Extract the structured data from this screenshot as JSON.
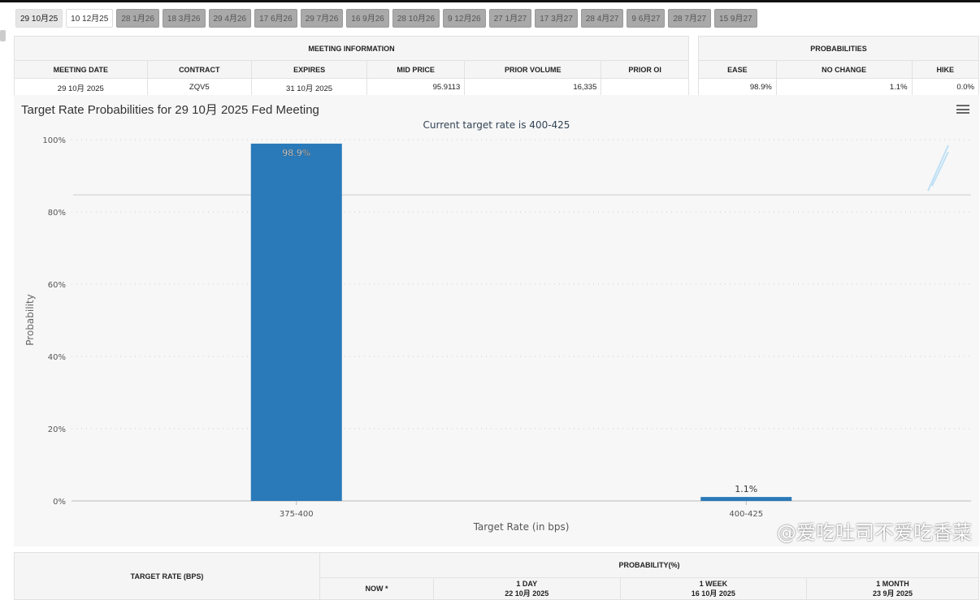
{
  "tabs": [
    "29 10月25",
    "10 12月25",
    "28 1月26",
    "18 3月26",
    "29 4月26",
    "17 6月26",
    "29 7月26",
    "16 9月26",
    "28 10月26",
    "9 12月26",
    "27 1月27",
    "17 3月27",
    "28 4月27",
    "9 6月27",
    "28 7月27",
    "15 9月27"
  ],
  "meeting": {
    "title": "MEETING INFORMATION",
    "headers": [
      "MEETING DATE",
      "CONTRACT",
      "EXPIRES",
      "MID PRICE",
      "PRIOR VOLUME",
      "PRIOR OI"
    ],
    "row": [
      "29 10月 2025",
      "ZQV5",
      "31 10月 2025",
      "95.9113",
      "16,335",
      ""
    ]
  },
  "probabilities": {
    "title": "PROBABILITIES",
    "headers": [
      "EASE",
      "NO CHANGE",
      "HIKE"
    ],
    "row": [
      "98.9%",
      "1.1%",
      "0.0%"
    ]
  },
  "chart_data": {
    "type": "bar",
    "title": "Target Rate Probabilities for 29 10月 2025 Fed Meeting",
    "subtitle": "Current target rate is 400-425",
    "categories": [
      "375-400",
      "400-425"
    ],
    "values": [
      98.9,
      1.1
    ],
    "data_labels": [
      "98.9%",
      "1.1%"
    ],
    "xlabel": "Target Rate (in bps)",
    "ylabel": "Probability",
    "ylim": [
      0,
      100
    ],
    "yticks": [
      "0%",
      "20%",
      "40%",
      "60%",
      "80%",
      "100%"
    ],
    "bar_color": "#2a7ab9",
    "grid": true
  },
  "bottom_table": {
    "col1": "TARGET RATE (BPS)",
    "group": "PROBABILITY(%)",
    "cols": [
      {
        "l1": "NOW",
        "l2": "*"
      },
      {
        "l1": "1 DAY",
        "l2": "22 10月 2025"
      },
      {
        "l1": "1 WEEK",
        "l2": "16 10月 2025"
      },
      {
        "l1": "1 MONTH",
        "l2": "23 9月 2025"
      }
    ]
  },
  "watermark": "@爱吃吐司不爱吃香菜"
}
